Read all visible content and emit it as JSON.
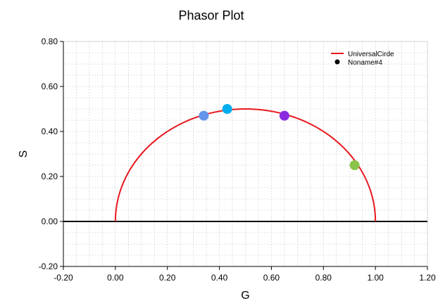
{
  "chart_data": {
    "type": "scatter",
    "title": "Phasor Plot",
    "xlabel": "G",
    "ylabel": "S",
    "xlim": [
      -0.2,
      1.2
    ],
    "ylim": [
      -0.2,
      0.8
    ],
    "x_ticks": [
      "-0.20",
      "0.00",
      "0.20",
      "0.40",
      "0.60",
      "0.80",
      "1.00",
      "1.20"
    ],
    "y_ticks": [
      "-0.20",
      "0.00",
      "0.20",
      "0.40",
      "0.60",
      "0.80"
    ],
    "grid": true,
    "legend_position": "top-right",
    "legend": [
      {
        "name": "UniversalCirde",
        "type": "line",
        "color": "#e8171e"
      },
      {
        "name": "Noname#4",
        "type": "marker",
        "color": "#000000"
      }
    ],
    "universal_circle": {
      "center": [
        0.5,
        0.0
      ],
      "radius": 0.5,
      "color": "#e8171e"
    },
    "baseline_y": 0.0,
    "series": [
      {
        "name": "Noname#4",
        "points": [
          {
            "x": 0.34,
            "y": 0.47,
            "color": "#6495ed"
          },
          {
            "x": 0.43,
            "y": 0.5,
            "color": "#00aeef"
          },
          {
            "x": 0.65,
            "y": 0.47,
            "color": "#8a2be2"
          },
          {
            "x": 0.92,
            "y": 0.25,
            "color": "#8bc34a"
          }
        ]
      }
    ]
  }
}
